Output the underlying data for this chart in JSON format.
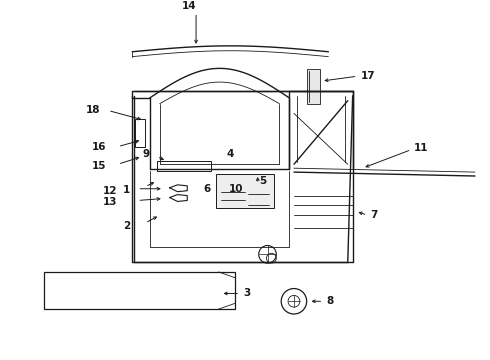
{
  "bg_color": "#ffffff",
  "line_color": "#1a1a1a",
  "lw_main": 1.0,
  "lw_thin": 0.6,
  "lw_thick": 1.4,
  "fs": 7.5
}
